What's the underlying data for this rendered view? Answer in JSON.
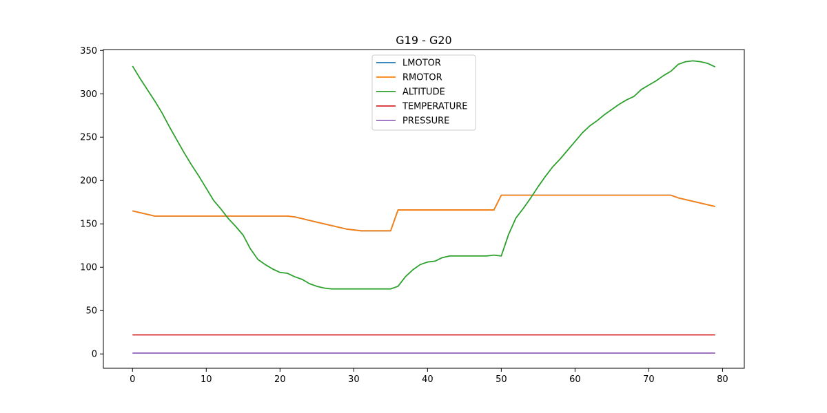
{
  "chart_data": {
    "type": "line",
    "title": "G19 - G20",
    "xlabel": "",
    "ylabel": "",
    "xlim": [
      -3.95,
      82.95
    ],
    "ylim": [
      -16.5,
      351
    ],
    "xticks": [
      0,
      10,
      20,
      30,
      40,
      50,
      60,
      70,
      80
    ],
    "xtick_labels": [
      "0",
      "10",
      "20",
      "30",
      "40",
      "50",
      "60",
      "70",
      "80"
    ],
    "yticks": [
      0,
      50,
      100,
      150,
      200,
      250,
      300,
      350
    ],
    "ytick_labels": [
      "0",
      "50",
      "100",
      "150",
      "200",
      "250",
      "300",
      "350"
    ],
    "grid": false,
    "legend_position": "upper-center",
    "series": [
      {
        "name": "LMOTOR",
        "color": "#1f77b4",
        "values": [
          165,
          163,
          161,
          159,
          159,
          159,
          159,
          159,
          159,
          159,
          159,
          159,
          159,
          159,
          159,
          159,
          159,
          159,
          159,
          159,
          159,
          159,
          158,
          156,
          154,
          152,
          150,
          148,
          146,
          144,
          143,
          142,
          142,
          142,
          142,
          142,
          166,
          166,
          166,
          166,
          166,
          166,
          166,
          166,
          166,
          166,
          166,
          166,
          166,
          166,
          183,
          183,
          183,
          183,
          183,
          183,
          183,
          183,
          183,
          183,
          183,
          183,
          183,
          183,
          183,
          183,
          183,
          183,
          183,
          183,
          183,
          183,
          183,
          183,
          180,
          178,
          176,
          174,
          172,
          170
        ]
      },
      {
        "name": "RMOTOR",
        "color": "#ff7f0e",
        "values": [
          165,
          163,
          161,
          159,
          159,
          159,
          159,
          159,
          159,
          159,
          159,
          159,
          159,
          159,
          159,
          159,
          159,
          159,
          159,
          159,
          159,
          159,
          158,
          156,
          154,
          152,
          150,
          148,
          146,
          144,
          143,
          142,
          142,
          142,
          142,
          142,
          166,
          166,
          166,
          166,
          166,
          166,
          166,
          166,
          166,
          166,
          166,
          166,
          166,
          166,
          183,
          183,
          183,
          183,
          183,
          183,
          183,
          183,
          183,
          183,
          183,
          183,
          183,
          183,
          183,
          183,
          183,
          183,
          183,
          183,
          183,
          183,
          183,
          183,
          180,
          178,
          176,
          174,
          172,
          170
        ]
      },
      {
        "name": "ALTITUDE",
        "color": "#2ca02c",
        "values": [
          332,
          318,
          305,
          292,
          278,
          262,
          247,
          232,
          218,
          205,
          191,
          177,
          167,
          156,
          147,
          137,
          121,
          109,
          103,
          98,
          94,
          93,
          89,
          86,
          81,
          78,
          76,
          75,
          75,
          75,
          75,
          75,
          75,
          75,
          75,
          75,
          78,
          89,
          97,
          103,
          106,
          107,
          111,
          113,
          113,
          113,
          113,
          113,
          113,
          114,
          113,
          138,
          157,
          168,
          180,
          193,
          205,
          216,
          225,
          235,
          245,
          255,
          263,
          269,
          276,
          282,
          288,
          293,
          297,
          305,
          310,
          315,
          321,
          326,
          334,
          337,
          338,
          337,
          335,
          331
        ]
      },
      {
        "name": "TEMPERATURE",
        "color": "#d62728",
        "values": [
          22,
          22,
          22,
          22,
          22,
          22,
          22,
          22,
          22,
          22,
          22,
          22,
          22,
          22,
          22,
          22,
          22,
          22,
          22,
          22,
          22,
          22,
          22,
          22,
          22,
          22,
          22,
          22,
          22,
          22,
          22,
          22,
          22,
          22,
          22,
          22,
          22,
          22,
          22,
          22,
          22,
          22,
          22,
          22,
          22,
          22,
          22,
          22,
          22,
          22,
          22,
          22,
          22,
          22,
          22,
          22,
          22,
          22,
          22,
          22,
          22,
          22,
          22,
          22,
          22,
          22,
          22,
          22,
          22,
          22,
          22,
          22,
          22,
          22,
          22,
          22,
          22,
          22,
          22,
          22
        ]
      },
      {
        "name": "PRESSURE",
        "color": "#9467bd",
        "values": [
          1,
          1,
          1,
          1,
          1,
          1,
          1,
          1,
          1,
          1,
          1,
          1,
          1,
          1,
          1,
          1,
          1,
          1,
          1,
          1,
          1,
          1,
          1,
          1,
          1,
          1,
          1,
          1,
          1,
          1,
          1,
          1,
          1,
          1,
          1,
          1,
          1,
          1,
          1,
          1,
          1,
          1,
          1,
          1,
          1,
          1,
          1,
          1,
          1,
          1,
          1,
          1,
          1,
          1,
          1,
          1,
          1,
          1,
          1,
          1,
          1,
          1,
          1,
          1,
          1,
          1,
          1,
          1,
          1,
          1,
          1,
          1,
          1,
          1,
          1,
          1,
          1,
          1,
          1,
          1
        ]
      }
    ]
  }
}
